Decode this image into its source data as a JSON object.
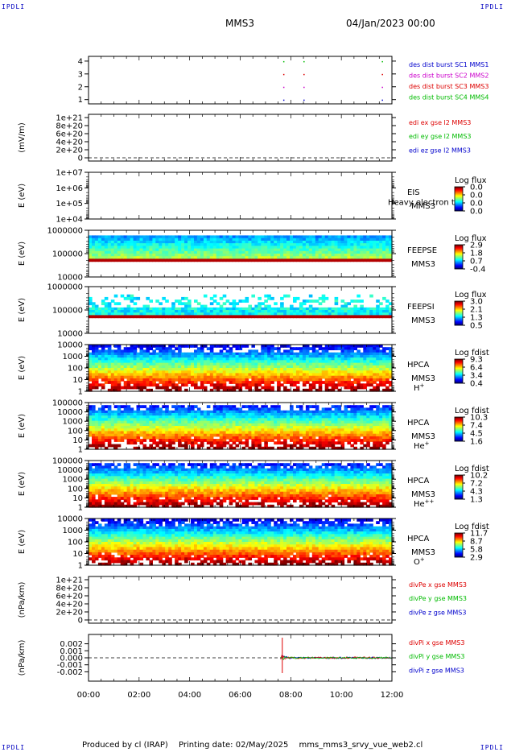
{
  "corner_label": "IPDLI",
  "header": {
    "spacecraft": "MMS3",
    "date": "04/Jan/2023 00:00"
  },
  "footer": {
    "produced_by": "Produced by  cl (IRAP)",
    "printing_date": "Printing date: 02/May/2025",
    "script": "mms_mms3_srvy_vue_web2.cl"
  },
  "colors": {
    "blue": "#0000cc",
    "magenta": "#cc00cc",
    "red": "#dd0000",
    "green": "#00bb00",
    "frame": "#000000"
  },
  "x_axis": {
    "tick_labels": [
      "00:00",
      "02:00",
      "04:00",
      "06:00",
      "08:00",
      "10:00",
      "12:00"
    ],
    "range_hours": [
      0,
      12
    ]
  },
  "panels": [
    {
      "id": "burst",
      "type": "flags",
      "ylabel": "",
      "yticks": [
        "4",
        "3",
        "2",
        "1"
      ],
      "legend": [
        {
          "text": "des dist burst SC1 MMS1",
          "color": "#0000cc"
        },
        {
          "text": "des dist burst SC2 MMS2",
          "color": "#cc00cc"
        },
        {
          "text": "des dist burst SC3 MMS3",
          "color": "#dd0000"
        },
        {
          "text": "des dist burst SC4 MMS4",
          "color": "#00bb00"
        }
      ],
      "flag_hours": [
        7.7,
        8.5,
        11.6
      ]
    },
    {
      "id": "edi",
      "type": "line",
      "ylabel": "(mV/m)",
      "yticks": [
        "1e+21",
        "8e+20",
        "6e+20",
        "4e+20",
        "2e+20",
        "0"
      ],
      "legend": [
        {
          "text": "edi ex gse l2 MMS3",
          "color": "#dd0000"
        },
        {
          "text": "edi ey gse l2 MMS3",
          "color": "#00bb00"
        },
        {
          "text": "edi ez gse l2 MMS3",
          "color": "#0000cc"
        }
      ]
    },
    {
      "id": "eis",
      "type": "empty_spec",
      "ylabel": "E (eV)",
      "yticks": [
        "1e+07",
        "1e+06",
        "1e+05",
        "1e+04"
      ],
      "instrument": [
        "EIS",
        "MMS3"
      ],
      "overlay": "Heavy electron to",
      "cbar_title": "Log flux",
      "cbar_ticks": [
        "0.0",
        "0.0",
        "0.0",
        "0.0"
      ]
    },
    {
      "id": "feepse",
      "type": "spec",
      "ylabel": "E (eV)",
      "yticks": [
        "1000000",
        "100000",
        "10000"
      ],
      "instrument": [
        "FEEPSE",
        "MMS3"
      ],
      "cbar_title": "Log flux",
      "cbar_ticks": [
        "2.9",
        "1.8",
        "0.7",
        "-0.4"
      ]
    },
    {
      "id": "feepsi",
      "type": "spec",
      "ylabel": "E (eV)",
      "yticks": [
        "1000000",
        "100000",
        "10000"
      ],
      "instrument": [
        "FEEPSI",
        "MMS3"
      ],
      "cbar_title": "Log flux",
      "cbar_ticks": [
        "3.0",
        "2.1",
        "1.3",
        "0.5"
      ]
    },
    {
      "id": "hpca_h",
      "type": "spec",
      "ylabel": "E (eV)",
      "yticks": [
        "10000",
        "1000",
        "100",
        "10",
        "1"
      ],
      "instrument": [
        "HPCA",
        "MMS3"
      ],
      "species": "H",
      "charge": "+",
      "cbar_title": "Log fdist",
      "cbar_ticks": [
        "9.3",
        "6.4",
        "3.4",
        "0.4"
      ]
    },
    {
      "id": "hpca_he",
      "type": "spec",
      "ylabel": "E (eV)",
      "yticks": [
        "100000",
        "10000",
        "1000",
        "100",
        "10",
        "1"
      ],
      "instrument": [
        "HPCA",
        "MMS3"
      ],
      "species": "He",
      "charge": "+",
      "cbar_title": "Log fdist",
      "cbar_ticks": [
        "10.3",
        "7.4",
        "4.5",
        "1.6"
      ]
    },
    {
      "id": "hpca_hepp",
      "type": "spec",
      "ylabel": "E (eV)",
      "yticks": [
        "100000",
        "10000",
        "1000",
        "100",
        "10",
        "1"
      ],
      "instrument": [
        "HPCA",
        "MMS3"
      ],
      "species": "He",
      "charge": "++",
      "cbar_title": "Log fdist",
      "cbar_ticks": [
        "10.2",
        "7.2",
        "4.3",
        "1.3"
      ]
    },
    {
      "id": "hpca_o",
      "type": "spec",
      "ylabel": "E (eV)",
      "yticks": [
        "10000",
        "1000",
        "100",
        "10",
        "1"
      ],
      "instrument": [
        "HPCA",
        "MMS3"
      ],
      "species": "O",
      "charge": "+",
      "cbar_title": "Log fdist",
      "cbar_ticks": [
        "11.7",
        "8.7",
        "5.8",
        "2.9"
      ]
    },
    {
      "id": "divpe",
      "type": "line",
      "ylabel": "(nPa/km)",
      "yticks": [
        "1e+21",
        "8e+20",
        "6e+20",
        "4e+20",
        "2e+20",
        "0"
      ],
      "legend": [
        {
          "text": "divPe x gse MMS3",
          "color": "#dd0000"
        },
        {
          "text": "divPe y gse MMS3",
          "color": "#00bb00"
        },
        {
          "text": "divPe z gse MMS3",
          "color": "#0000cc"
        }
      ]
    },
    {
      "id": "divpi",
      "type": "divpi",
      "ylabel": "(nPa/km)",
      "yticks": [
        "0.002",
        "0.001",
        "0.000",
        "-0.001",
        "-0.002"
      ],
      "legend": [
        {
          "text": "divPi x gse MMS3",
          "color": "#dd0000"
        },
        {
          "text": "divPi y gse MMS3",
          "color": "#00bb00"
        },
        {
          "text": "divPi z gse MMS3",
          "color": "#0000cc"
        }
      ],
      "data_start_hour": 7.6
    }
  ],
  "chart_data": {
    "type": "heatmap",
    "x_range_hours": [
      0,
      12
    ],
    "series": [
      {
        "name": "divPi x gse MMS3",
        "values": [
          0.0,
          0.0,
          0.0
        ]
      },
      {
        "name": "divPi y gse MMS3",
        "values": [
          0.0,
          0.0,
          0.0
        ]
      },
      {
        "name": "divPi z gse MMS3",
        "values": [
          0.0,
          0.0,
          0.0
        ]
      }
    ],
    "x": [
      "07:40",
      "10:00",
      "12:00"
    ]
  }
}
